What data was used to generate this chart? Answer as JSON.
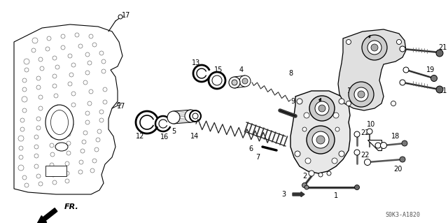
{
  "bg_color": "#ffffff",
  "line_color": "#000000",
  "catalog_code": "S0K3-A1820",
  "gray_dark": "#444444",
  "gray_mid": "#888888",
  "gray_light": "#cccccc"
}
